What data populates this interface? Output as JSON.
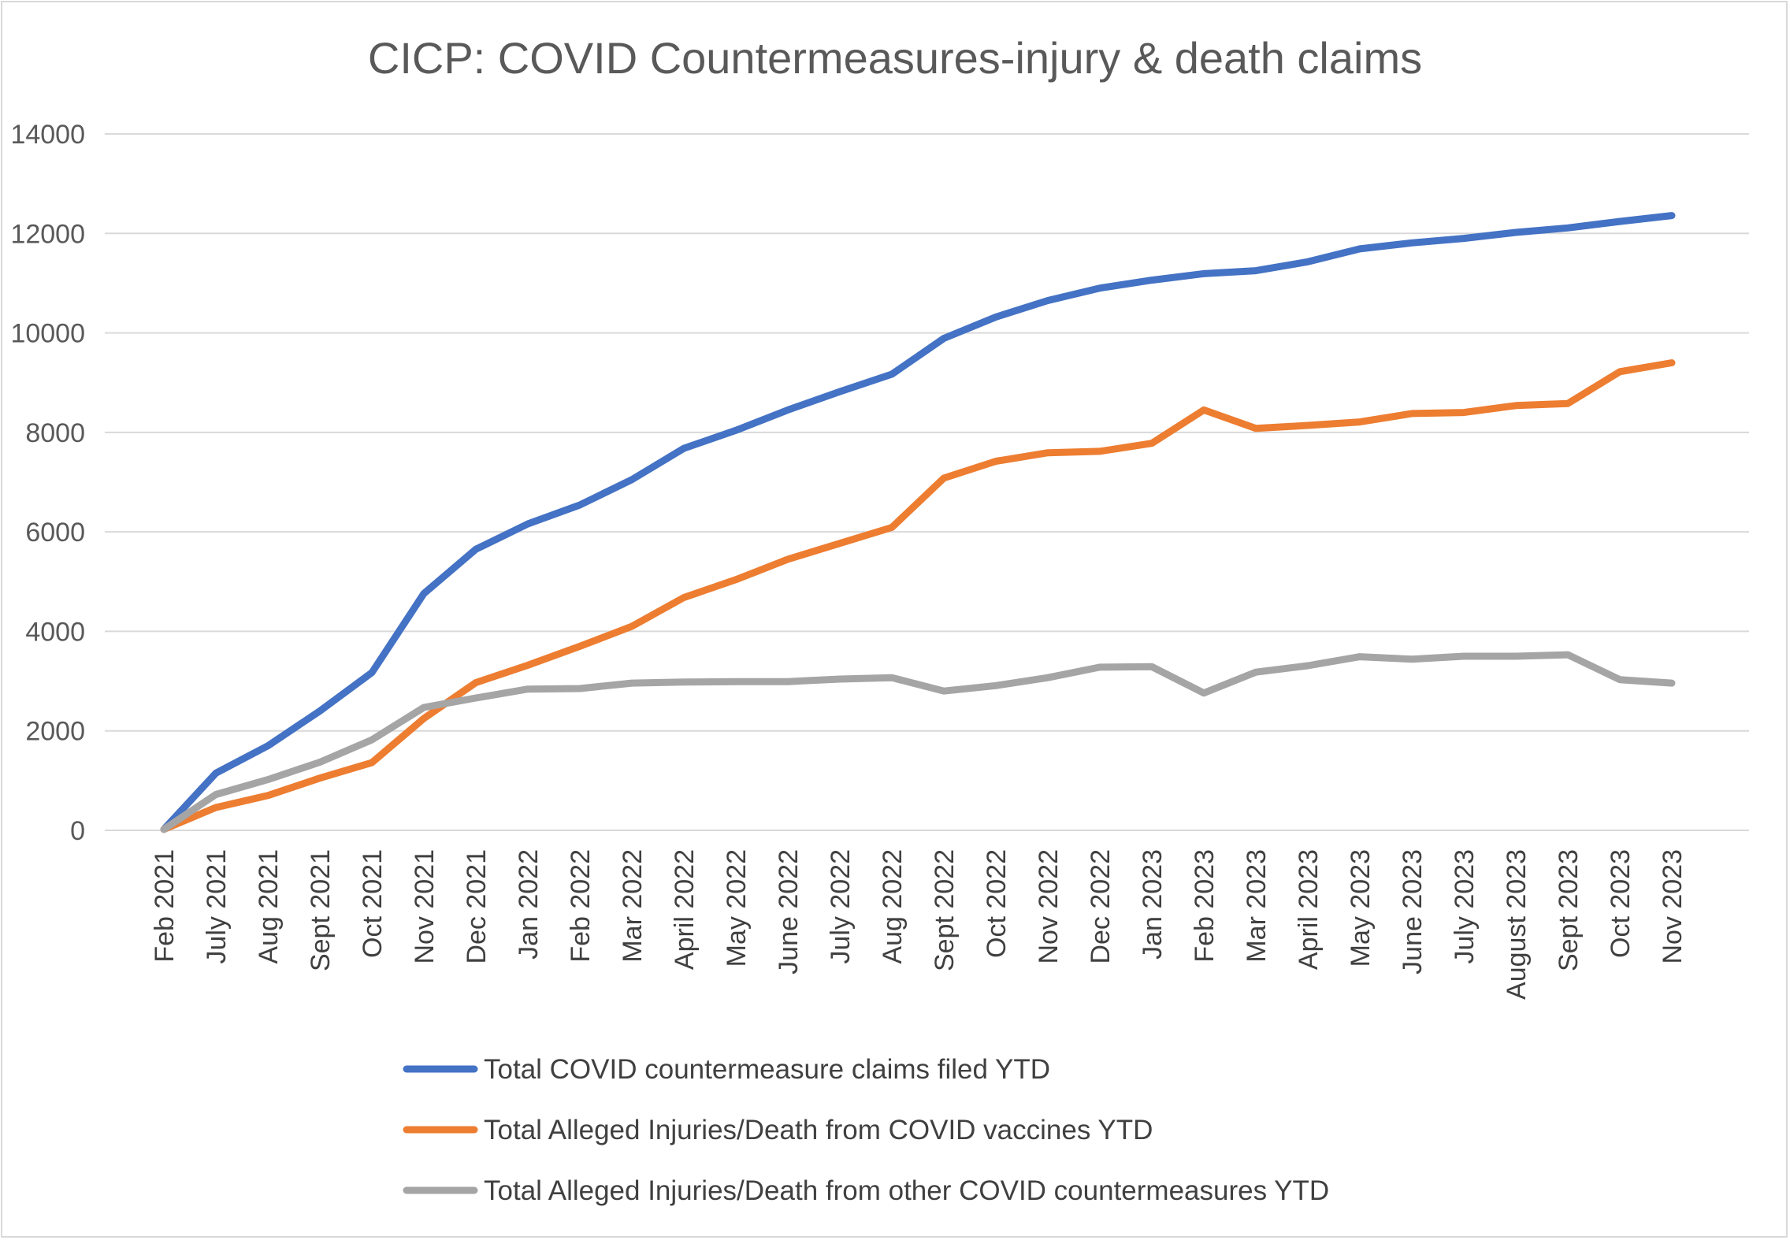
{
  "chart_data": {
    "type": "line",
    "title": "CICP: COVID Countermeasures-injury & death claims",
    "xlabel": "",
    "ylabel": "",
    "ylim": [
      0,
      14000
    ],
    "yticks": [
      "0",
      "2000",
      "4000",
      "6000",
      "8000",
      "10000",
      "12000",
      "14000"
    ],
    "grid": true,
    "legend_position": "bottom",
    "categories": [
      "Feb 2021",
      "July 2021",
      "Aug 2021",
      "Sept 2021",
      "Oct 2021",
      "Nov 2021",
      "Dec 2021",
      "Jan 2022",
      "Feb 2022",
      "Mar 2022",
      "April 2022",
      "May 2022",
      "June 2022",
      "July 2022",
      "Aug 2022",
      "Sept 2022",
      "Oct 2022",
      "Nov 2022",
      "Dec 2022",
      "Jan 2023",
      "Feb 2023",
      "Mar 2023",
      "April 2023",
      "May 2023",
      "June 2023",
      "July 2023",
      "August 2023",
      "Sept 2023",
      "Oct 2023",
      "Nov 2023"
    ],
    "series": [
      {
        "name": "Total COVID countermeasure claims filed YTD",
        "color": "#4472c4",
        "values": [
          20,
          1150,
          1700,
          2400,
          3170,
          4760,
          5650,
          6160,
          6540,
          7050,
          7680,
          8040,
          8450,
          8820,
          9170,
          9890,
          10320,
          10650,
          10900,
          11060,
          11190,
          11250,
          11430,
          11690,
          11810,
          11900,
          12020,
          12110,
          12240,
          12360
        ]
      },
      {
        "name": "Total Alleged Injuries/Death from COVID vaccines YTD",
        "color": "#ed7d31",
        "values": [
          20,
          460,
          700,
          1050,
          1360,
          2250,
          2970,
          3320,
          3700,
          4100,
          4680,
          5040,
          5450,
          5770,
          6090,
          7080,
          7420,
          7590,
          7620,
          7780,
          8450,
          8080,
          8140,
          8210,
          8380,
          8400,
          8540,
          8580,
          9220,
          9400
        ]
      },
      {
        "name": "Total Alleged Injuries/Death from other COVID countermeasures YTD",
        "color": "#a5a5a5",
        "values": [
          20,
          720,
          1020,
          1370,
          1820,
          2470,
          2660,
          2840,
          2850,
          2960,
          2980,
          2990,
          2990,
          3040,
          3070,
          2800,
          2910,
          3070,
          3280,
          3290,
          2760,
          3180,
          3310,
          3490,
          3440,
          3500,
          3500,
          3530,
          3030,
          2960
        ]
      }
    ]
  }
}
